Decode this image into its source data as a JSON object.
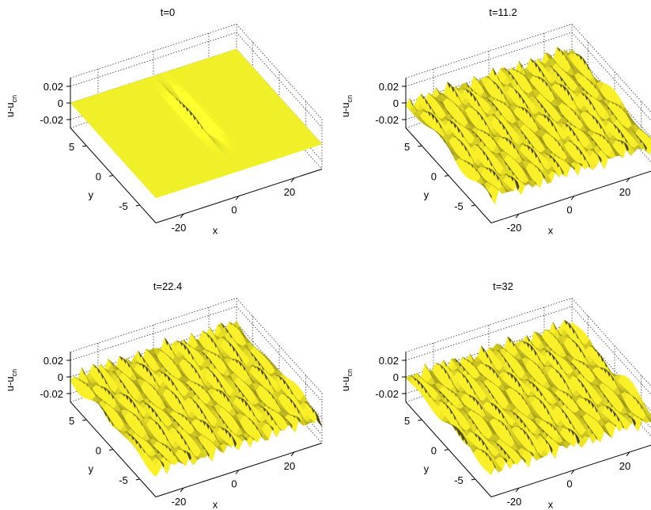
{
  "chart_data": [
    {
      "type": "surface",
      "title": "t=0",
      "xlabel": "x",
      "ylabel": "y",
      "zlabel": "u-u",
      "zlabel_sub": "cn",
      "x_ticks": [
        "-20",
        "0",
        "20"
      ],
      "y_ticks": [
        "-5",
        "0",
        "5"
      ],
      "z_ticks": [
        "0.02",
        "0",
        "-0.02"
      ],
      "xlim": [
        -30,
        30
      ],
      "ylim": [
        -8,
        8
      ],
      "zlim": [
        -0.03,
        0.03
      ],
      "grid": true,
      "surface_color": "#f0f028",
      "surface_state": "flat-with-single-localized-pulse",
      "wave_amplitude": 0
    },
    {
      "type": "surface",
      "title": "t=11.2",
      "xlabel": "x",
      "ylabel": "y",
      "zlabel": "u-u",
      "zlabel_sub": "cn",
      "x_ticks": [
        "-20",
        "0",
        "20"
      ],
      "y_ticks": [
        "-5",
        "0",
        "5"
      ],
      "z_ticks": [
        "0.02",
        "0",
        "-0.02"
      ],
      "xlim": [
        -30,
        30
      ],
      "ylim": [
        -8,
        8
      ],
      "zlim": [
        -0.03,
        0.03
      ],
      "grid": true,
      "surface_color": "#c8c020",
      "surface_state": "rippled",
      "wave_amplitude": 0.01
    },
    {
      "type": "surface",
      "title": "t=22.4",
      "xlabel": "x",
      "ylabel": "y",
      "zlabel": "u-u",
      "zlabel_sub": "cn",
      "x_ticks": [
        "-20",
        "0",
        "20"
      ],
      "y_ticks": [
        "-5",
        "0",
        "5"
      ],
      "z_ticks": [
        "0.02",
        "0",
        "-0.02"
      ],
      "xlim": [
        -30,
        30
      ],
      "ylim": [
        -8,
        8
      ],
      "zlim": [
        -0.03,
        0.03
      ],
      "grid": true,
      "surface_color": "#c8c020",
      "surface_state": "rippled",
      "wave_amplitude": 0.01
    },
    {
      "type": "surface",
      "title": "t=32",
      "xlabel": "x",
      "ylabel": "y",
      "zlabel": "u-u",
      "zlabel_sub": "cn",
      "x_ticks": [
        "-20",
        "0",
        "20"
      ],
      "y_ticks": [
        "-5",
        "0",
        "5"
      ],
      "z_ticks": [
        "0.02",
        "0",
        "-0.02"
      ],
      "xlim": [
        -30,
        30
      ],
      "ylim": [
        -8,
        8
      ],
      "zlim": [
        -0.03,
        0.03
      ],
      "grid": true,
      "surface_color": "#c8c020",
      "surface_state": "rippled",
      "wave_amplitude": 0.01
    }
  ]
}
